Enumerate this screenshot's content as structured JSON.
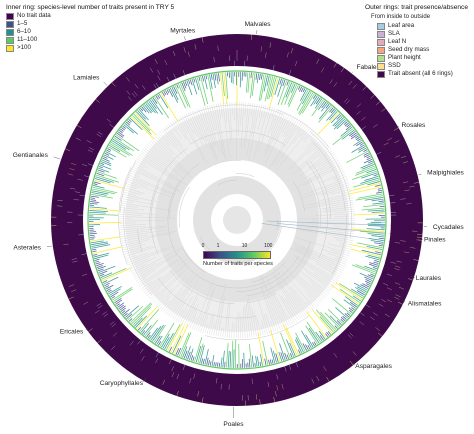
{
  "inner_legend": {
    "title": "Inner ring: species-level number of traits present in TRY 5",
    "items": [
      {
        "label": "No trait data",
        "color": "#440154"
      },
      {
        "label": "1–5",
        "color": "#3b528b"
      },
      {
        "label": "6–10",
        "color": "#21918c"
      },
      {
        "label": "11–100",
        "color": "#5ec962"
      },
      {
        "label": ">100",
        "color": "#fde725"
      }
    ]
  },
  "outer_legend": {
    "title": "Outer rings: trait presence/absence",
    "subtitle": "From inside to outside",
    "items": [
      {
        "label": "Leaf area",
        "color": "#a6cee3"
      },
      {
        "label": "SLA",
        "color": "#cab2d6"
      },
      {
        "label": "Leaf N",
        "color": "#e7a9bd"
      },
      {
        "label": "Seed dry mass",
        "color": "#f4a582"
      },
      {
        "label": "Plant height",
        "color": "#b2df8a"
      },
      {
        "label": "SSD",
        "color": "#fee08b"
      },
      {
        "label": "Trait absent (all 6 rings)",
        "color": "#3f0a4a"
      }
    ]
  },
  "colorbar": {
    "ticks": [
      "0",
      "1",
      "10",
      "100"
    ],
    "title": "Number of traits per species"
  },
  "orders": [
    {
      "label": "Myrtales",
      "angle": -16,
      "r": 197
    },
    {
      "label": "Malvales",
      "angle": 6,
      "r": 197
    },
    {
      "label": "Fabales",
      "angle": 38,
      "r": 194
    },
    {
      "label": "Rosales",
      "angle": 60,
      "r": 190
    },
    {
      "label": "Malpighiales",
      "angle": 76,
      "r": 196
    },
    {
      "label": "Cycadales",
      "angle": 92,
      "r": 196
    },
    {
      "label": "Pinales",
      "angle": 96,
      "r": 188
    },
    {
      "label": "Laurales",
      "angle": 108,
      "r": 188
    },
    {
      "label": "Alismatales",
      "angle": 116,
      "r": 190
    },
    {
      "label": "Asparagales",
      "angle": 141,
      "r": 188
    },
    {
      "label": "Poales",
      "angle": 181,
      "r": 204
    },
    {
      "label": "Caryophyllales",
      "angle": 210,
      "r": 188
    },
    {
      "label": "Ericales",
      "angle": 234,
      "r": 190
    },
    {
      "label": "Asterales",
      "angle": 262,
      "r": 198
    },
    {
      "label": "Gentianales",
      "angle": 289,
      "r": 200
    },
    {
      "label": "Lamiales",
      "angle": 316,
      "r": 198
    }
  ],
  "colors": {
    "trait_absent": "#3f0a4a",
    "ring_separator": "#ffffff",
    "background_circles": "#e6e6e6",
    "inner_ring_accent": "#5ec962"
  }
}
